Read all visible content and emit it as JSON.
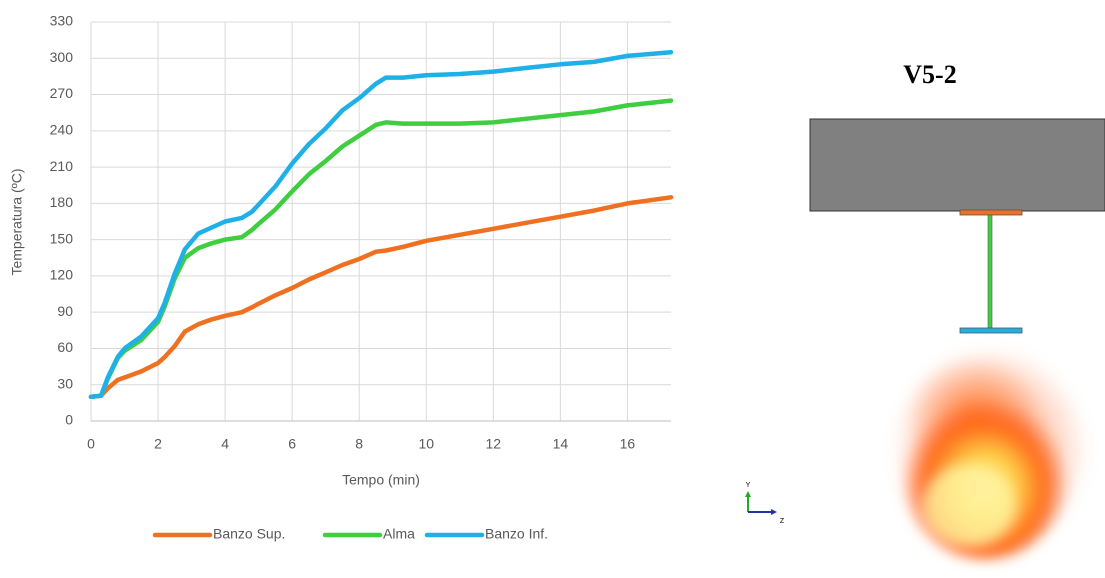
{
  "chart_data": {
    "type": "line",
    "x_label": "Tempo (min)",
    "y_label": "Temperatura (ºC)",
    "x": [
      0,
      0.3,
      0.5,
      0.8,
      1,
      1.5,
      2,
      2.2,
      2.5,
      2.8,
      3.2,
      3.6,
      4,
      4.5,
      4.8,
      5,
      5.5,
      6,
      6.5,
      7,
      7.5,
      8,
      8.5,
      8.8,
      9.3,
      10,
      11,
      12,
      13,
      14,
      15,
      16,
      17.3
    ],
    "series": [
      {
        "name": "Banzo Sup.",
        "color": "#f07021",
        "values": [
          20,
          21,
          27,
          34,
          36,
          41,
          48,
          53,
          62,
          74,
          80,
          84,
          87,
          90,
          94,
          97,
          104,
          110,
          117,
          123,
          129,
          134,
          140,
          141,
          144,
          149,
          154,
          159,
          164,
          169,
          174,
          180,
          185
        ]
      },
      {
        "name": "Alma",
        "color": "#3fce3f",
        "values": [
          20,
          21,
          35,
          52,
          58,
          67,
          82,
          95,
          118,
          135,
          143,
          147,
          150,
          152,
          158,
          163,
          175,
          190,
          204,
          215,
          227,
          236,
          245,
          247,
          246,
          246,
          246,
          247,
          250,
          253,
          256,
          261,
          265
        ]
      },
      {
        "name": "Banzo Inf.",
        "color": "#1fb0e8",
        "values": [
          20,
          21,
          36,
          53,
          60,
          70,
          85,
          98,
          122,
          142,
          155,
          160,
          165,
          168,
          173,
          179,
          194,
          213,
          229,
          242,
          257,
          267,
          279,
          284,
          284,
          286,
          287,
          289,
          292,
          295,
          297,
          302,
          305
        ]
      }
    ],
    "xlim": [
      0,
      17.3
    ],
    "xticks": [
      0,
      2,
      4,
      6,
      8,
      10,
      12,
      14,
      16
    ],
    "ylim": [
      0,
      330
    ],
    "yticks": [
      0,
      30,
      60,
      90,
      120,
      150,
      180,
      210,
      240,
      270,
      300,
      330
    ],
    "grid": true,
    "legend": "bottom"
  },
  "figure": {
    "title": "V5-2",
    "axis_labels": [
      "Y",
      "Z"
    ]
  }
}
